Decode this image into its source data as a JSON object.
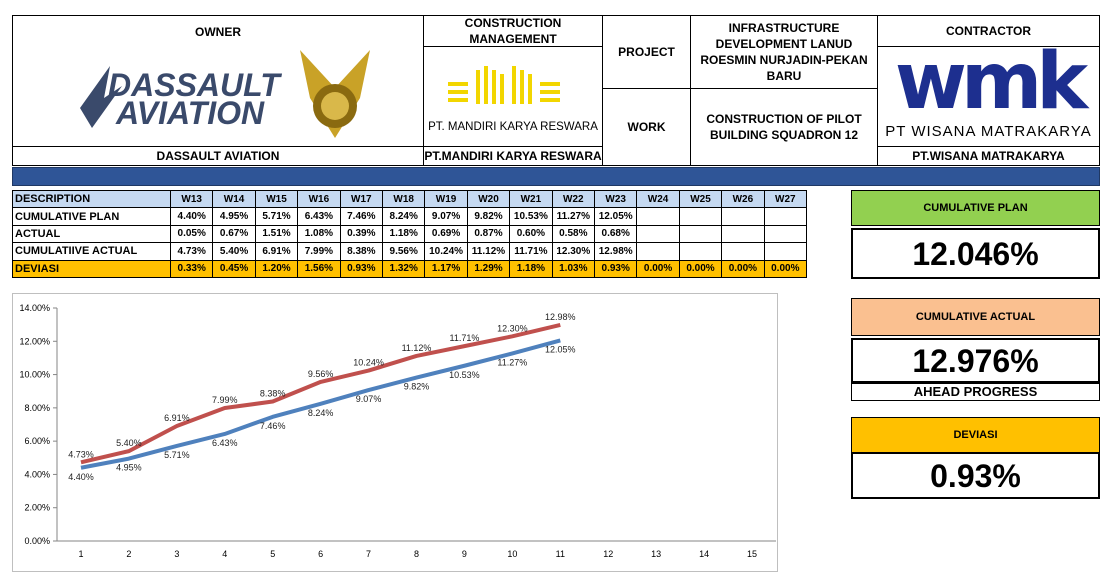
{
  "header": {
    "owner_label": "OWNER",
    "owner_logo_lines": [
      "DASSAULT",
      "AVIATION"
    ],
    "owner_name": "DASSAULT AVIATION",
    "cm_label": "CONSTRUCTION MANAGEMENT",
    "cm_logo_text": "PT. MANDIRI KARYA RESWARA",
    "cm_name": "PT.MANDIRI KARYA RESWARA",
    "project_label": "PROJECT",
    "project": "INFRASTRUCTURE DEVELOPMENT LANUD ROESMIN NURJADIN-PEKAN BARU",
    "work_label": "WORK",
    "work": "CONSTRUCTION OF PILOT BUILDING SQUADRON 12",
    "contractor_label": "CONTRACTOR",
    "contractor_logo": "wmk",
    "contractor_logo_text": "PT WISANA MATRAKARYA",
    "contractor_name": "PT.WISANA MATRAKARYA"
  },
  "table": {
    "columns": [
      "DESCRIPTION",
      "W13",
      "W14",
      "W15",
      "W16",
      "W17",
      "W18",
      "W19",
      "W20",
      "W21",
      "W22",
      "W23",
      "W24",
      "W25",
      "W26",
      "W27"
    ],
    "rows": [
      {
        "label": "CUMULATIVE PLAN",
        "cells": [
          "4.40%",
          "4.95%",
          "5.71%",
          "6.43%",
          "7.46%",
          "8.24%",
          "9.07%",
          "9.82%",
          "10.53%",
          "11.27%",
          "12.05%"
        ]
      },
      {
        "label": "ACTUAL",
        "cells": [
          "0.05%",
          "0.67%",
          "1.51%",
          "1.08%",
          "0.39%",
          "1.18%",
          "0.69%",
          "0.87%",
          "0.60%",
          "0.58%",
          "0.68%"
        ]
      },
      {
        "label": "CUMULATIIVE ACTUAL",
        "cells": [
          "4.73%",
          "5.40%",
          "6.91%",
          "7.99%",
          "8.38%",
          "9.56%",
          "10.24%",
          "11.12%",
          "11.71%",
          "12.30%",
          "12.98%"
        ]
      },
      {
        "label": "DEVIASI",
        "color": "#ffc000",
        "cells": [
          "0.33%",
          "0.45%",
          "1.20%",
          "1.56%",
          "0.93%",
          "1.32%",
          "1.17%",
          "1.29%",
          "1.18%",
          "1.03%",
          "0.93%",
          "0.00%",
          "0.00%",
          "0.00%",
          "0.00%"
        ]
      }
    ]
  },
  "chart_data": {
    "type": "line",
    "categories": [
      "1",
      "2",
      "3",
      "4",
      "5",
      "6",
      "7",
      "8",
      "9",
      "10",
      "11",
      "12",
      "13",
      "14",
      "15"
    ],
    "series": [
      {
        "color": "#4f81bd",
        "values": [
          4.4,
          4.95,
          5.71,
          6.43,
          7.46,
          8.24,
          9.07,
          9.82,
          10.53,
          11.27,
          12.05,
          null,
          null,
          null,
          null
        ],
        "value_labels": [
          "4.40%",
          "4.95%",
          "5.71%",
          "6.43%",
          "7.46%",
          "8.24%",
          "9.07%",
          "9.82%",
          "10.53%",
          "11.27%",
          "12.05%",
          null,
          null,
          null,
          null
        ]
      },
      {
        "color": "#c0504d",
        "values": [
          4.73,
          5.4,
          6.91,
          7.99,
          8.38,
          9.56,
          10.24,
          11.12,
          11.71,
          12.3,
          12.98,
          null,
          null,
          null,
          null
        ],
        "value_labels": [
          "4.73%",
          "5.40%",
          "6.91%",
          "7.99%",
          "8.38%",
          "9.56%",
          "10.24%",
          "11.12%",
          "11.71%",
          "12.30%",
          "12.98%",
          null,
          null,
          null,
          null
        ]
      }
    ],
    "ylim": [
      0,
      14
    ],
    "yticks": [
      {
        "value": 0,
        "label": "0.00%"
      },
      {
        "value": 2,
        "label": "2.00%"
      },
      {
        "value": 4,
        "label": "4.00%"
      },
      {
        "value": 6,
        "label": "6.00%"
      },
      {
        "value": 8,
        "label": "8.00%"
      },
      {
        "value": 10,
        "label": "10.00%"
      },
      {
        "value": 12,
        "label": "12.00%"
      },
      {
        "value": 14,
        "label": "14.00%"
      }
    ]
  },
  "kpis": [
    {
      "title": "CUMULATIVE PLAN",
      "value": "12.046%",
      "color": "#92d050"
    },
    {
      "title": "CUMULATIVE ACTUAL",
      "value": "12.976%",
      "note": "AHEAD PROGRESS",
      "color": "#fac090"
    },
    {
      "title": "DEVIASI",
      "value": "0.93%",
      "color": "#ffc000"
    }
  ]
}
